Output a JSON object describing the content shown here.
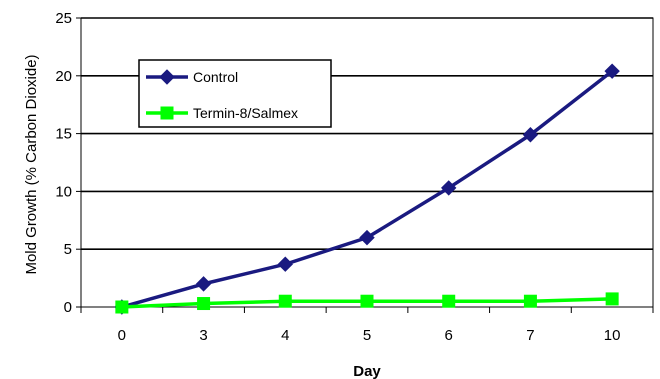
{
  "chart_data": {
    "type": "line",
    "title": "",
    "xlabel": "Day",
    "ylabel": "Mold Growth (% Carbon Dioxide)",
    "categories": [
      "0",
      "3",
      "4",
      "5",
      "6",
      "7",
      "10"
    ],
    "ylim": [
      0,
      25
    ],
    "yticks": [
      "0",
      "5",
      "10",
      "15",
      "20",
      "25"
    ],
    "grid": "horizontal major gridlines",
    "legend_position": "upper-left inside plot",
    "series": [
      {
        "name": "Control",
        "values": [
          0,
          2,
          3.7,
          6,
          10.3,
          14.9,
          20.4
        ],
        "color": "#1a1a80",
        "marker": "diamond"
      },
      {
        "name": "Termin-8/Salmex",
        "values": [
          0,
          0.3,
          0.5,
          0.5,
          0.5,
          0.5,
          0.7
        ],
        "color": "#00ff00",
        "marker": "square"
      }
    ]
  }
}
